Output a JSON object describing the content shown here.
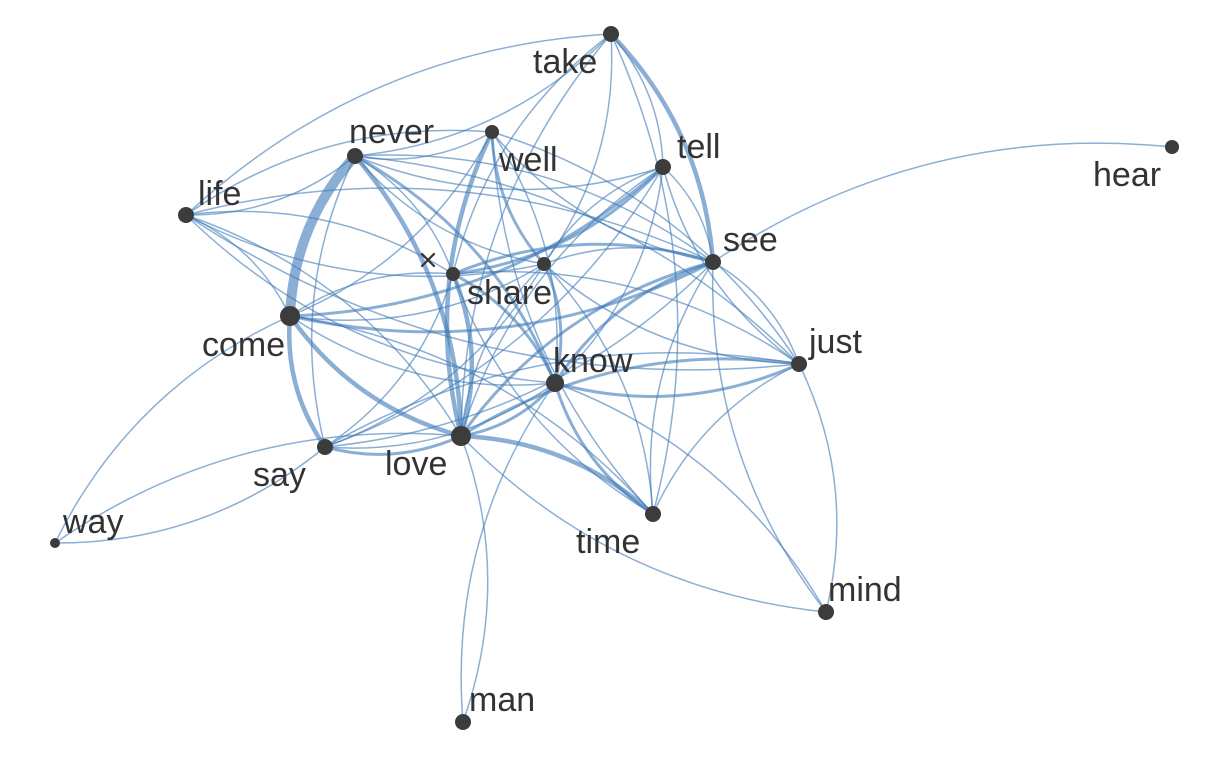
{
  "graph": {
    "edge_color": "#3d7ab8",
    "node_color": "#3c3c3c",
    "label_color": "#333333",
    "nodes": [
      {
        "id": "take"
      },
      {
        "id": "never"
      },
      {
        "id": "well"
      },
      {
        "id": "tell"
      },
      {
        "id": "hear"
      },
      {
        "id": "life"
      },
      {
        "id": "see"
      },
      {
        "id": "share"
      },
      {
        "id": "come"
      },
      {
        "id": "just"
      },
      {
        "id": "know"
      },
      {
        "id": "say"
      },
      {
        "id": "love"
      },
      {
        "id": "way"
      },
      {
        "id": "time"
      },
      {
        "id": "mind"
      },
      {
        "id": "man"
      },
      {
        "id": "x"
      }
    ],
    "edges": [
      {
        "source": "never",
        "target": "come",
        "weight": 5
      },
      {
        "source": "take",
        "target": "see",
        "weight": 3
      },
      {
        "source": "come",
        "target": "say",
        "weight": 3
      },
      {
        "source": "never",
        "target": "love",
        "weight": 3
      },
      {
        "source": "come",
        "target": "love",
        "weight": 3
      },
      {
        "source": "love",
        "target": "time",
        "weight": 3
      },
      {
        "source": "well",
        "target": "love",
        "weight": 3
      },
      {
        "source": "x",
        "target": "love",
        "weight": 3
      },
      {
        "source": "come",
        "target": "tell",
        "weight": 2
      },
      {
        "source": "never",
        "target": "know",
        "weight": 2
      },
      {
        "source": "come",
        "target": "see",
        "weight": 2
      },
      {
        "source": "love",
        "target": "see",
        "weight": 2
      },
      {
        "source": "love",
        "target": "know",
        "weight": 2
      },
      {
        "source": "love",
        "target": "just",
        "weight": 2
      },
      {
        "source": "know",
        "target": "time",
        "weight": 2
      },
      {
        "source": "know",
        "target": "see",
        "weight": 2
      },
      {
        "source": "know",
        "target": "just",
        "weight": 2
      },
      {
        "source": "x",
        "target": "see",
        "weight": 2
      },
      {
        "source": "x",
        "target": "tell",
        "weight": 2
      },
      {
        "source": "x",
        "target": "know",
        "weight": 2
      },
      {
        "source": "well",
        "target": "share",
        "weight": 2
      },
      {
        "source": "share",
        "target": "know",
        "weight": 2
      },
      {
        "source": "say",
        "target": "love",
        "weight": 2
      },
      {
        "source": "take",
        "target": "never",
        "weight": 1
      },
      {
        "source": "take",
        "target": "life",
        "weight": 1
      },
      {
        "source": "take",
        "target": "tell",
        "weight": 1
      },
      {
        "source": "take",
        "target": "x",
        "weight": 1
      },
      {
        "source": "take",
        "target": "share",
        "weight": 1
      },
      {
        "source": "take",
        "target": "love",
        "weight": 1
      },
      {
        "source": "take",
        "target": "time",
        "weight": 1
      },
      {
        "source": "never",
        "target": "well",
        "weight": 1
      },
      {
        "source": "never",
        "target": "life",
        "weight": 1
      },
      {
        "source": "never",
        "target": "share",
        "weight": 1
      },
      {
        "source": "never",
        "target": "see",
        "weight": 1
      },
      {
        "source": "never",
        "target": "say",
        "weight": 1
      },
      {
        "source": "never",
        "target": "x",
        "weight": 1
      },
      {
        "source": "never",
        "target": "tell",
        "weight": 1
      },
      {
        "source": "never",
        "target": "just",
        "weight": 1
      },
      {
        "source": "well",
        "target": "life",
        "weight": 1
      },
      {
        "source": "well",
        "target": "come",
        "weight": 1
      },
      {
        "source": "well",
        "target": "see",
        "weight": 1
      },
      {
        "source": "well",
        "target": "know",
        "weight": 1
      },
      {
        "source": "well",
        "target": "time",
        "weight": 1
      },
      {
        "source": "well",
        "target": "just",
        "weight": 1
      },
      {
        "source": "tell",
        "target": "share",
        "weight": 1
      },
      {
        "source": "tell",
        "target": "see",
        "weight": 1
      },
      {
        "source": "tell",
        "target": "love",
        "weight": 1
      },
      {
        "source": "tell",
        "target": "know",
        "weight": 1
      },
      {
        "source": "tell",
        "target": "just",
        "weight": 1
      },
      {
        "source": "tell",
        "target": "say",
        "weight": 1
      },
      {
        "source": "hear",
        "target": "see",
        "weight": 1
      },
      {
        "source": "life",
        "target": "x",
        "weight": 1
      },
      {
        "source": "life",
        "target": "share",
        "weight": 1
      },
      {
        "source": "life",
        "target": "see",
        "weight": 1
      },
      {
        "source": "life",
        "target": "know",
        "weight": 1
      },
      {
        "source": "life",
        "target": "love",
        "weight": 1
      },
      {
        "source": "life",
        "target": "just",
        "weight": 1
      },
      {
        "source": "life",
        "target": "come",
        "weight": 1
      },
      {
        "source": "see",
        "target": "share",
        "weight": 1
      },
      {
        "source": "see",
        "target": "just",
        "weight": 1
      },
      {
        "source": "see",
        "target": "time",
        "weight": 1
      },
      {
        "source": "see",
        "target": "say",
        "weight": 1
      },
      {
        "source": "see",
        "target": "mind",
        "weight": 1
      },
      {
        "source": "share",
        "target": "come",
        "weight": 1
      },
      {
        "source": "share",
        "target": "love",
        "weight": 1
      },
      {
        "source": "share",
        "target": "time",
        "weight": 1
      },
      {
        "source": "share",
        "target": "just",
        "weight": 1
      },
      {
        "source": "share",
        "target": "say",
        "weight": 1
      },
      {
        "source": "come",
        "target": "know",
        "weight": 1
      },
      {
        "source": "come",
        "target": "x",
        "weight": 1
      },
      {
        "source": "come",
        "target": "way",
        "weight": 1
      },
      {
        "source": "come",
        "target": "time",
        "weight": 1
      },
      {
        "source": "just",
        "target": "time",
        "weight": 1
      },
      {
        "source": "just",
        "target": "mind",
        "weight": 1
      },
      {
        "source": "just",
        "target": "say",
        "weight": 1
      },
      {
        "source": "know",
        "target": "say",
        "weight": 1
      },
      {
        "source": "know",
        "target": "man",
        "weight": 1
      },
      {
        "source": "know",
        "target": "mind",
        "weight": 1
      },
      {
        "source": "say",
        "target": "x",
        "weight": 1
      },
      {
        "source": "say",
        "target": "way",
        "weight": 1
      },
      {
        "source": "love",
        "target": "way",
        "weight": 1
      },
      {
        "source": "love",
        "target": "man",
        "weight": 1
      },
      {
        "source": "love",
        "target": "mind",
        "weight": 1
      },
      {
        "source": "x",
        "target": "just",
        "weight": 1
      },
      {
        "source": "x",
        "target": "time",
        "weight": 1
      }
    ]
  }
}
